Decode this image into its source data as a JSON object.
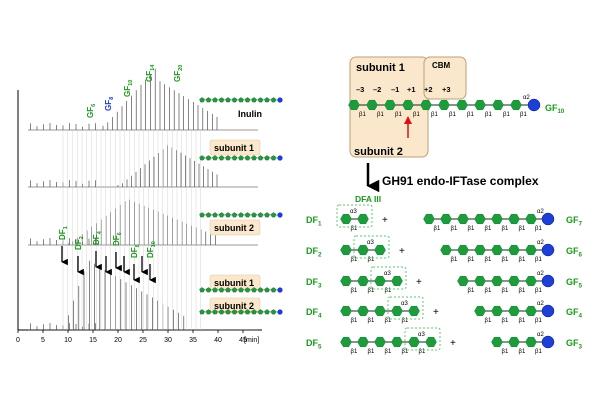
{
  "chromatogram": {
    "axis_ticks": [
      "0",
      "5",
      "10",
      "15",
      "20",
      "25",
      "30",
      "35",
      "40",
      "45"
    ],
    "axis_unit": "[min]",
    "peak_labels": [
      {
        "base": "GF",
        "sub": "6",
        "color": "#1a9a1a"
      },
      {
        "base": "GF",
        "sub": "8",
        "color": "#1a3ad8"
      },
      {
        "base": "GF",
        "sub": "10",
        "color": "#1a9a1a"
      },
      {
        "base": "GF",
        "sub": "14",
        "color": "#1a9a1a"
      },
      {
        "base": "GF",
        "sub": "20",
        "color": "#1a9a1a"
      }
    ],
    "df_labels": [
      {
        "base": "DF",
        "sub": "1"
      },
      {
        "base": "DF",
        "sub": "2"
      },
      {
        "base": "DF",
        "sub": "4"
      },
      {
        "base": "DF",
        "sub": "6"
      },
      {
        "base": "DF",
        "sub": "8"
      },
      {
        "base": "DF",
        "sub": "10"
      }
    ],
    "trace_labels": [
      "Inulin",
      "subunit 1",
      "subunit 2",
      "subunit 1",
      "subunit 2"
    ]
  },
  "complex": {
    "subunit1": "subunit 1",
    "cbm": "CBM",
    "subsites": [
      "–3",
      "–2",
      "–1",
      "+1",
      "+2",
      "+3"
    ],
    "subunit2": "subunit 2",
    "substrate": {
      "base": "GF",
      "sub": "10"
    },
    "beta": "β1",
    "alpha": "α2"
  },
  "enzyme_name": "GH91 endo-IFTase complex",
  "dfa_label": "DFA III",
  "products": [
    {
      "left": {
        "base": "DF",
        "sub": "1"
      },
      "right": {
        "base": "GF",
        "sub": "7"
      }
    },
    {
      "left": {
        "base": "DF",
        "sub": "2"
      },
      "right": {
        "base": "GF",
        "sub": "6"
      }
    },
    {
      "left": {
        "base": "DF",
        "sub": "3"
      },
      "right": {
        "base": "GF",
        "sub": "5"
      }
    },
    {
      "left": {
        "base": "DF",
        "sub": "4"
      },
      "right": {
        "base": "GF",
        "sub": "4"
      }
    },
    {
      "left": {
        "base": "DF",
        "sub": "5"
      },
      "right": {
        "base": "GF",
        "sub": "3"
      }
    }
  ],
  "colors": {
    "fructose": "#1f9b3c",
    "glucose": "#1d3fd6",
    "label_green": "#1a9a1a",
    "box_fill": "#fbe8cc",
    "box_stroke": "#b9a078",
    "dashed": "#5cc96b",
    "cut_arrow": "#e01010"
  }
}
